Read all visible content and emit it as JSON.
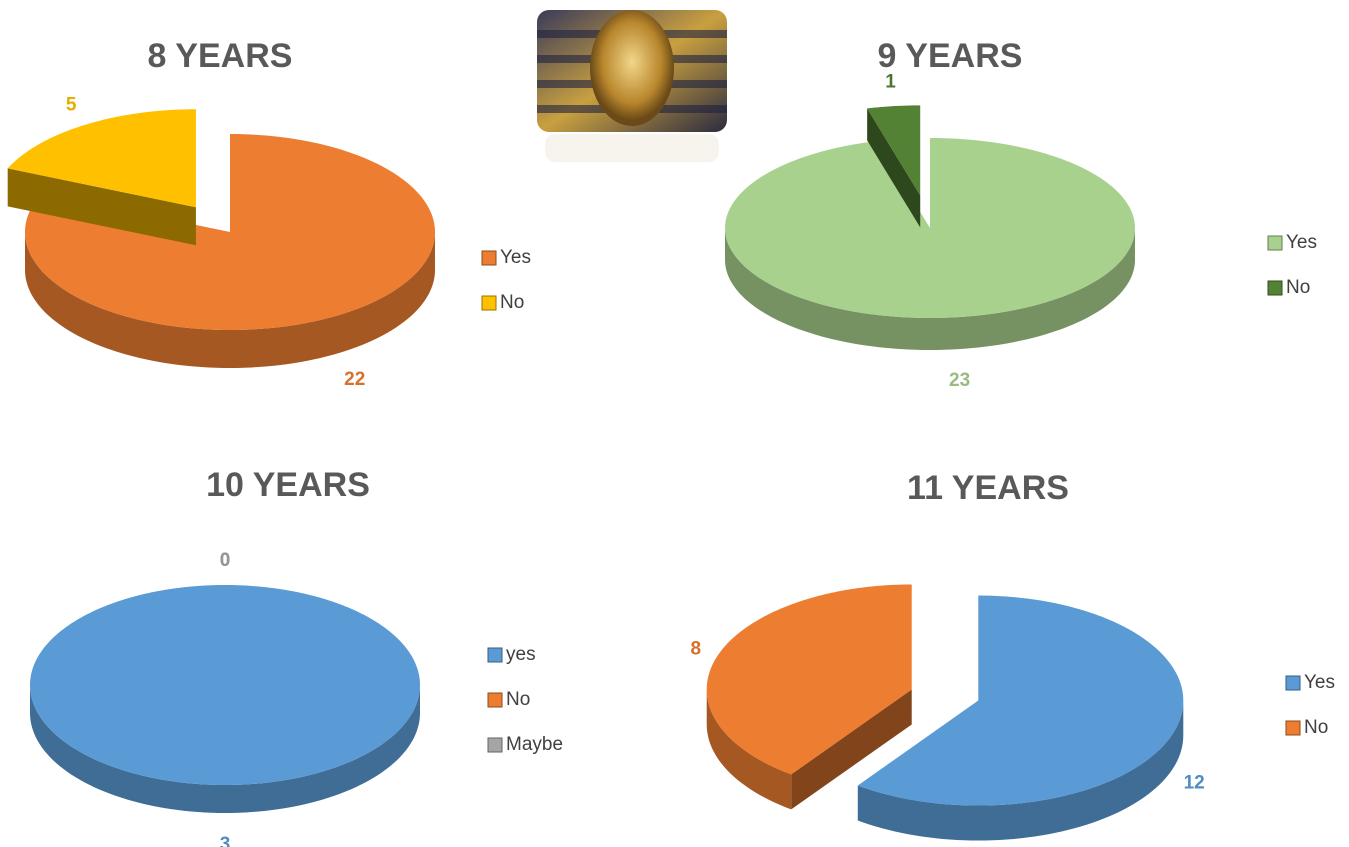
{
  "chart_data": [
    {
      "type": "pie",
      "title": "8 YEARS",
      "categories": [
        "Yes",
        "No"
      ],
      "values": [
        22,
        5
      ],
      "colors": [
        "#ED7D31",
        "#FFC000"
      ]
    },
    {
      "type": "pie",
      "title": "9 YEARS",
      "categories": [
        "Yes",
        "No"
      ],
      "values": [
        23,
        1
      ],
      "colors": [
        "#A9D18E",
        "#548235"
      ]
    },
    {
      "type": "pie",
      "title": "10 YEARS",
      "categories": [
        "yes",
        "No",
        "Maybe"
      ],
      "values": [
        3,
        0,
        0
      ],
      "colors": [
        "#5B9BD5",
        "#ED7D31",
        "#A5A5A5"
      ]
    },
    {
      "type": "pie",
      "title": "11 YEARS",
      "categories": [
        "Yes",
        "No"
      ],
      "values": [
        12,
        8
      ],
      "colors": [
        "#5B9BD5",
        "#ED7D31"
      ]
    }
  ]
}
